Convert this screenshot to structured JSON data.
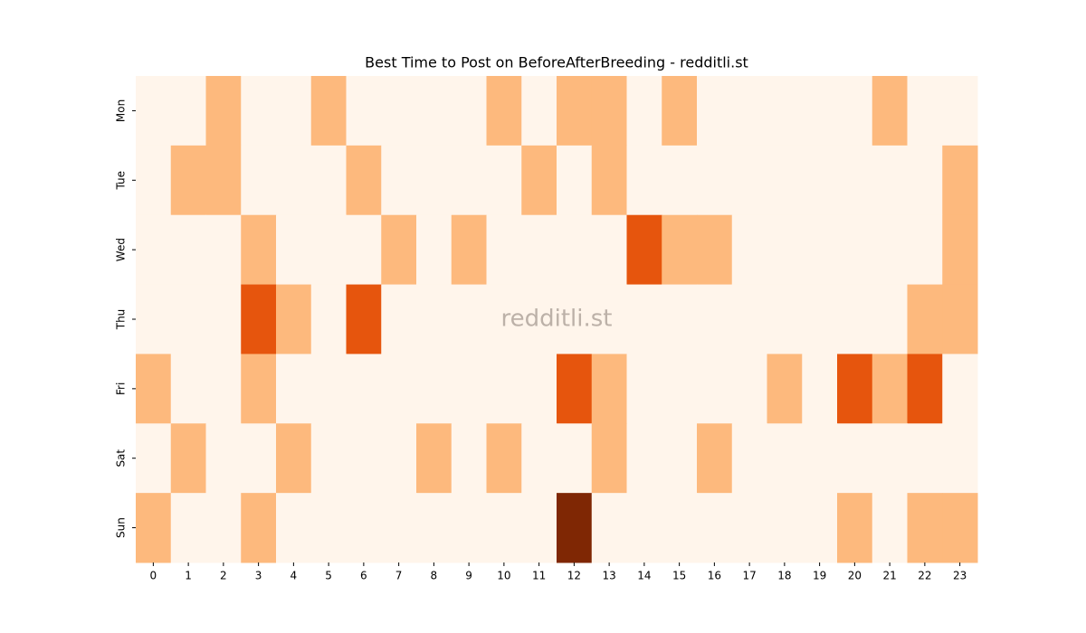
{
  "chart_data": {
    "type": "heatmap",
    "title": "Best Time to Post on BeforeAfterBreeding - redditli.st",
    "watermark": "redditli.st",
    "categories": [
      0,
      1,
      2,
      3,
      4,
      5,
      6,
      7,
      8,
      9,
      10,
      11,
      12,
      13,
      14,
      15,
      16,
      17,
      18,
      19,
      20,
      21,
      22,
      23
    ],
    "rows": [
      "Mon",
      "Tue",
      "Wed",
      "Thu",
      "Fri",
      "Sat",
      "Sun"
    ],
    "values": [
      [
        0,
        0,
        1,
        0,
        0,
        1,
        0,
        0,
        0,
        0,
        1,
        0,
        1,
        1,
        0,
        1,
        0,
        0,
        0,
        0,
        0,
        1,
        0,
        0
      ],
      [
        0,
        1,
        1,
        0,
        0,
        0,
        1,
        0,
        0,
        0,
        0,
        1,
        0,
        1,
        0,
        0,
        0,
        0,
        0,
        0,
        0,
        0,
        0,
        1
      ],
      [
        0,
        0,
        0,
        1,
        0,
        0,
        0,
        1,
        0,
        1,
        0,
        0,
        0,
        0,
        2,
        1,
        1,
        0,
        0,
        0,
        0,
        0,
        0,
        1
      ],
      [
        0,
        0,
        0,
        2,
        1,
        0,
        2,
        0,
        0,
        0,
        0,
        0,
        0,
        0,
        0,
        0,
        0,
        0,
        0,
        0,
        0,
        0,
        1,
        1
      ],
      [
        1,
        0,
        0,
        1,
        0,
        0,
        0,
        0,
        0,
        0,
        0,
        0,
        2,
        1,
        0,
        0,
        0,
        0,
        1,
        0,
        2,
        1,
        2,
        0
      ],
      [
        0,
        1,
        0,
        0,
        1,
        0,
        0,
        0,
        1,
        0,
        1,
        0,
        0,
        1,
        0,
        0,
        1,
        0,
        0,
        0,
        0,
        0,
        0,
        0
      ],
      [
        1,
        0,
        0,
        1,
        0,
        0,
        0,
        0,
        0,
        0,
        0,
        0,
        3,
        0,
        0,
        0,
        0,
        0,
        0,
        0,
        1,
        0,
        1,
        1
      ]
    ],
    "zlim": [
      0,
      3
    ],
    "colorscale": [
      "#fff5eb",
      "#fdb97d",
      "#e6550d",
      "#7f2704"
    ]
  }
}
